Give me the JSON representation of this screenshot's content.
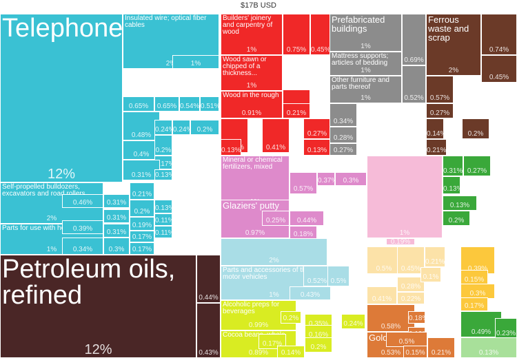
{
  "total_label": "$17B USD",
  "chart_data": {
    "type": "treemap",
    "title": "",
    "unit": "share of total exports",
    "items": [
      {
        "label": "Telephones",
        "share": "12%",
        "color": "#3ac1d3",
        "tier": "big"
      },
      {
        "label": "Insulated wire; optical fiber cables",
        "share": "2%",
        "color": "#3ac1d3",
        "tier": "small"
      },
      {
        "label": "",
        "share": "1%",
        "color": "#3ac1d3"
      },
      {
        "label": "",
        "share": "0.65%",
        "color": "#3ac1d3"
      },
      {
        "label": "",
        "share": "0.65%",
        "color": "#3ac1d3"
      },
      {
        "label": "",
        "share": "0.54%",
        "color": "#3ac1d3"
      },
      {
        "label": "",
        "share": "0.51%",
        "color": "#3ac1d3"
      },
      {
        "label": "",
        "share": "0.48%",
        "color": "#3ac1d3"
      },
      {
        "label": "",
        "share": "0.24%",
        "color": "#3ac1d3"
      },
      {
        "label": "",
        "share": "0.24%",
        "color": "#3ac1d3"
      },
      {
        "label": "",
        "share": "0.2%",
        "color": "#3ac1d3"
      },
      {
        "label": "",
        "share": "0.4%",
        "color": "#3ac1d3"
      },
      {
        "label": "",
        "share": "0.2%",
        "color": "#3ac1d3"
      },
      {
        "label": "",
        "share": "0.17%",
        "color": "#3ac1d3"
      },
      {
        "label": "",
        "share": "0.31%",
        "color": "#3ac1d3"
      },
      {
        "label": "",
        "share": "0.13%",
        "color": "#3ac1d3"
      },
      {
        "label": "Self-propelled bulldozers, excavators and road rollers",
        "share": "2%",
        "color": "#3ac1d3",
        "tier": "small"
      },
      {
        "label": "Parts for use with hoists and...",
        "share": "1%",
        "color": "#3ac1d3",
        "tier": "small"
      },
      {
        "label": "",
        "share": "0.46%",
        "color": "#3ac1d3"
      },
      {
        "label": "",
        "share": "0.39%",
        "color": "#3ac1d3"
      },
      {
        "label": "",
        "share": "0.34%",
        "color": "#3ac1d3"
      },
      {
        "label": "",
        "share": "0.31%",
        "color": "#3ac1d3"
      },
      {
        "label": "",
        "share": "0.31%",
        "color": "#3ac1d3"
      },
      {
        "label": "",
        "share": "0.31%",
        "color": "#3ac1d3"
      },
      {
        "label": "",
        "share": "0.3%",
        "color": "#3ac1d3"
      },
      {
        "label": "",
        "share": "0.21%",
        "color": "#3ac1d3"
      },
      {
        "label": "",
        "share": "0.2%",
        "color": "#3ac1d3"
      },
      {
        "label": "",
        "share": "0.19%",
        "color": "#3ac1d3"
      },
      {
        "label": "",
        "share": "0.17%",
        "color": "#3ac1d3"
      },
      {
        "label": "",
        "share": "0.17%",
        "color": "#3ac1d3"
      },
      {
        "label": "",
        "share": "0.13%",
        "color": "#3ac1d3"
      },
      {
        "label": "",
        "share": "0.11%",
        "color": "#3ac1d3"
      },
      {
        "label": "",
        "share": "0.11%",
        "color": "#3ac1d3"
      },
      {
        "label": "Petroleum oils, refined",
        "share": "12%",
        "color": "#4a2626",
        "tier": "big"
      },
      {
        "label": "",
        "share": "0.44%",
        "color": "#4a2626"
      },
      {
        "label": "",
        "share": "0.43%",
        "color": "#4a2626"
      },
      {
        "label": "Builders' joinery and carpentry of wood",
        "share": "1%",
        "color": "#f02828",
        "tier": "small"
      },
      {
        "label": "",
        "share": "0.75%",
        "color": "#f02828"
      },
      {
        "label": "",
        "share": "0.45%",
        "color": "#f02828"
      },
      {
        "label": "Wood sawn or chipped of a thickness...",
        "share": "1%",
        "color": "#f02828",
        "tier": "small"
      },
      {
        "label": "Wood in the rough",
        "share": "0.91%",
        "color": "#f02828",
        "tier": "small"
      },
      {
        "label": "",
        "share": "0.25%",
        "color": "#f02828"
      },
      {
        "label": "",
        "share": "0.21%",
        "color": "#f02828"
      },
      {
        "label": "",
        "share": "0.39%",
        "color": "#f02828"
      },
      {
        "label": "",
        "share": "0.41%",
        "color": "#f02828"
      },
      {
        "label": "",
        "share": "0.27%",
        "color": "#f02828"
      },
      {
        "label": "",
        "share": "0.13%",
        "color": "#f02828"
      },
      {
        "label": "",
        "share": "0.13%",
        "color": "#f02828"
      },
      {
        "label": "Prefabricated buildings",
        "share": "1%",
        "color": "#8c8c8c",
        "tier": "mid"
      },
      {
        "label": "",
        "share": "0.69%",
        "color": "#8c8c8c"
      },
      {
        "label": "Mattress supports; articles of bedding",
        "share": "1%",
        "color": "#8c8c8c",
        "tier": "small"
      },
      {
        "label": "Other furniture and parts thereof",
        "share": "1%",
        "color": "#8c8c8c",
        "tier": "small"
      },
      {
        "label": "",
        "share": "0.52%",
        "color": "#8c8c8c"
      },
      {
        "label": "",
        "share": "0.34%",
        "color": "#8c8c8c"
      },
      {
        "label": "",
        "share": "0.28%",
        "color": "#8c8c8c"
      },
      {
        "label": "",
        "share": "0.27%",
        "color": "#8c8c8c"
      },
      {
        "label": "Ferrous waste and scrap",
        "share": "2%",
        "color": "#6b3a28",
        "tier": "mid"
      },
      {
        "label": "",
        "share": "0.74%",
        "color": "#6b3a28"
      },
      {
        "label": "",
        "share": "0.45%",
        "color": "#6b3a28"
      },
      {
        "label": "",
        "share": "0.57%",
        "color": "#6b3a28"
      },
      {
        "label": "",
        "share": "0.27%",
        "color": "#6b3a28"
      },
      {
        "label": "",
        "share": "0.14%",
        "color": "#6b3a28"
      },
      {
        "label": "",
        "share": "0.2%",
        "color": "#6b3a28"
      },
      {
        "label": "",
        "share": "0.21%",
        "color": "#6b3a28"
      },
      {
        "label": "Mineral or chemical fertilizers, mixed",
        "share": "1%",
        "color": "#de8acb",
        "tier": "small"
      },
      {
        "label": "",
        "share": "0.57%",
        "color": "#de8acb"
      },
      {
        "label": "",
        "share": "0.37%",
        "color": "#de8acb"
      },
      {
        "label": "",
        "share": "0.3%",
        "color": "#de8acb"
      },
      {
        "label": "Glaziers' putty",
        "share": "0.97%",
        "color": "#de8acb",
        "tier": "mid"
      },
      {
        "label": "",
        "share": "0.25%",
        "color": "#de8acb"
      },
      {
        "label": "",
        "share": "0.44%",
        "color": "#de8acb"
      },
      {
        "label": "",
        "share": "0.18%",
        "color": "#de8acb"
      },
      {
        "label": "",
        "share": "0.4%",
        "color": "#f6bbd8"
      },
      {
        "label": "",
        "share": "0.38%",
        "color": "#f6bbd8"
      },
      {
        "label": "",
        "share": "1%",
        "color": "#f6bbd8"
      },
      {
        "label": "",
        "share": "0.19%",
        "color": "#f6bbd8"
      },
      {
        "label": "",
        "share": "0.31%",
        "color": "#3aa83a"
      },
      {
        "label": "",
        "share": "0.27%",
        "color": "#3aa83a"
      },
      {
        "label": "",
        "share": "0.13%",
        "color": "#3aa83a"
      },
      {
        "label": "",
        "share": "0.13%",
        "color": "#3aa83a"
      },
      {
        "label": "",
        "share": "0.2%",
        "color": "#3aa83a"
      },
      {
        "label": "",
        "share": "2%",
        "color": "#a9dde6"
      },
      {
        "label": "Parts and accessories of the motor vehicles",
        "share": "1%",
        "color": "#a9dde6",
        "tier": "small"
      },
      {
        "label": "",
        "share": "0.52%",
        "color": "#a9dde6"
      },
      {
        "label": "",
        "share": "0.5%",
        "color": "#a9dde6"
      },
      {
        "label": "",
        "share": "0.43%",
        "color": "#a9dde6"
      },
      {
        "label": "",
        "share": "0.5%",
        "color": "#fce2a8"
      },
      {
        "label": "",
        "share": "0.45%",
        "color": "#fce2a8"
      },
      {
        "label": "",
        "share": "0.28%",
        "color": "#fce2a8"
      },
      {
        "label": "",
        "share": "0.41%",
        "color": "#fce2a8"
      },
      {
        "label": "",
        "share": "0.22%",
        "color": "#fce2a8"
      },
      {
        "label": "",
        "share": "0.21%",
        "color": "#fce2a8"
      },
      {
        "label": "",
        "share": "0.1%",
        "color": "#fce2a8"
      },
      {
        "label": "",
        "share": "0.39%",
        "color": "#fcc83c"
      },
      {
        "label": "",
        "share": "0.15%",
        "color": "#fcc83c"
      },
      {
        "label": "",
        "share": "0.3%",
        "color": "#fcc83c"
      },
      {
        "label": "",
        "share": "0.17%",
        "color": "#fcc83c"
      },
      {
        "label": "Alcoholic preps for beverages",
        "share": "0.99%",
        "color": "#d9ec22",
        "tier": "small"
      },
      {
        "label": "",
        "share": "0.2%",
        "color": "#d9ec22"
      },
      {
        "label": "",
        "share": "0.35%",
        "color": "#d9ec22"
      },
      {
        "label": "",
        "share": "0.24%",
        "color": "#d9ec22"
      },
      {
        "label": "",
        "share": "0.16%",
        "color": "#d9ec22"
      },
      {
        "label": "Cocoa beans, whole",
        "share": "0.89%",
        "color": "#d9ec22",
        "tier": "small"
      },
      {
        "label": "",
        "share": "0.17%",
        "color": "#d9ec22"
      },
      {
        "label": "",
        "share": "0.14%",
        "color": "#d9ec22"
      },
      {
        "label": "",
        "share": "0.2%",
        "color": "#d9ec22"
      },
      {
        "label": "",
        "share": "0.58%",
        "color": "#dd7a38"
      },
      {
        "label": "",
        "share": "0.18%",
        "color": "#dd7a38"
      },
      {
        "label": "",
        "share": "0.13%",
        "color": "#dd7a38"
      },
      {
        "label": "Gold",
        "share": "0.53%",
        "color": "#dd7a38",
        "tier": "mid"
      },
      {
        "label": "",
        "share": "0.5%",
        "color": "#dd7a38"
      },
      {
        "label": "",
        "share": "0.15%",
        "color": "#dd7a38"
      },
      {
        "label": "",
        "share": "0.21%",
        "color": "#dd7a38"
      },
      {
        "label": "",
        "share": "0.49%",
        "color": "#3aa83a"
      },
      {
        "label": "",
        "share": "0.23%",
        "color": "#3aa83a"
      },
      {
        "label": "",
        "share": "0.13%",
        "color": "#a8e09a"
      }
    ]
  }
}
